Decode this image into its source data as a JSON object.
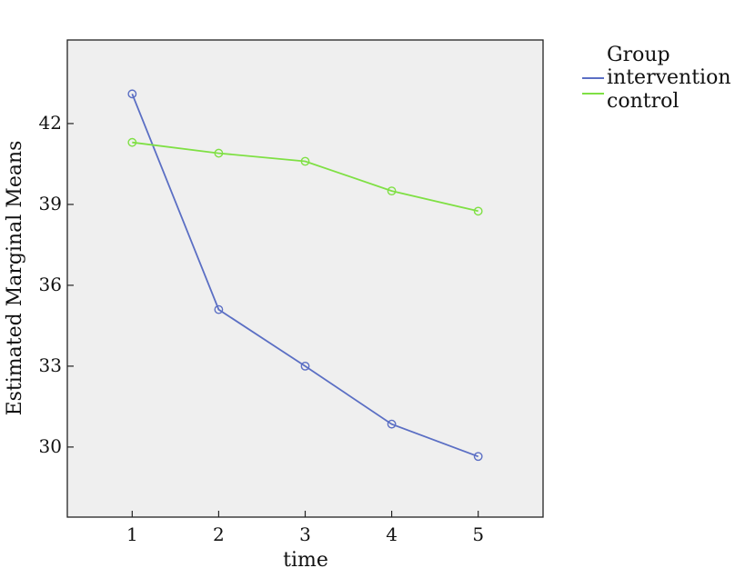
{
  "chart_data": {
    "type": "line",
    "title": "",
    "xlabel": "time",
    "ylabel": "Estimated Marginal Means",
    "x": [
      1,
      2,
      3,
      4,
      5
    ],
    "x_tick_labels": [
      "1",
      "2",
      "3",
      "4",
      "5"
    ],
    "xlim": [
      0.25,
      5.75
    ],
    "y_ticks": [
      30,
      33,
      36,
      39,
      42
    ],
    "y_tick_labels": [
      "30",
      "33",
      "36",
      "39",
      "42"
    ],
    "ylim": [
      27.4,
      45.1
    ],
    "grid": false,
    "legend": {
      "title": "Group",
      "placement": "outside-top-right"
    },
    "series": [
      {
        "name": "intervention",
        "color": "#5b6fc4",
        "values": [
          43.1,
          35.1,
          33.0,
          30.85,
          29.65
        ]
      },
      {
        "name": "control",
        "color": "#7fe044",
        "values": [
          41.3,
          40.9,
          40.6,
          39.5,
          38.75
        ]
      }
    ],
    "plot_background": "#efefef",
    "marker": "open-circle"
  }
}
